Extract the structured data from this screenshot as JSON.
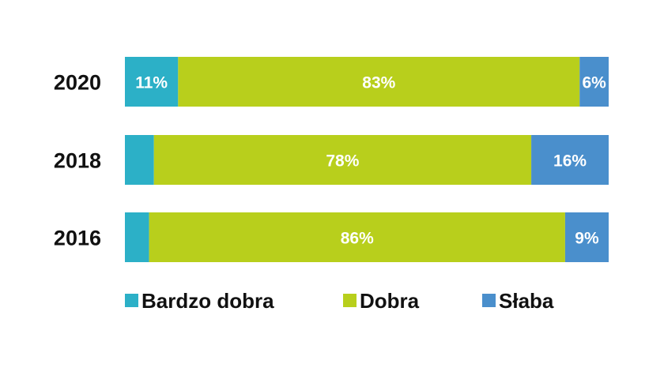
{
  "chart_data": {
    "type": "bar",
    "orientation": "horizontal",
    "stacked": true,
    "categories": [
      "2020",
      "2018",
      "2016"
    ],
    "series": [
      {
        "name": "Bardzo dobra",
        "values": [
          11,
          6,
          5
        ],
        "labels": [
          "11%",
          "",
          ""
        ],
        "color": "#2cb0c7"
      },
      {
        "name": "Dobra",
        "values": [
          83,
          78,
          86
        ],
        "labels": [
          "83%",
          "78%",
          "86%"
        ],
        "color": "#b8cf1c"
      },
      {
        "name": "Słaba",
        "values": [
          6,
          16,
          9
        ],
        "labels": [
          "6%",
          "16%",
          "9%"
        ],
        "color": "#4a8fcc"
      }
    ],
    "xlim": [
      0,
      100
    ],
    "grid": false,
    "legend_position": "bottom"
  }
}
